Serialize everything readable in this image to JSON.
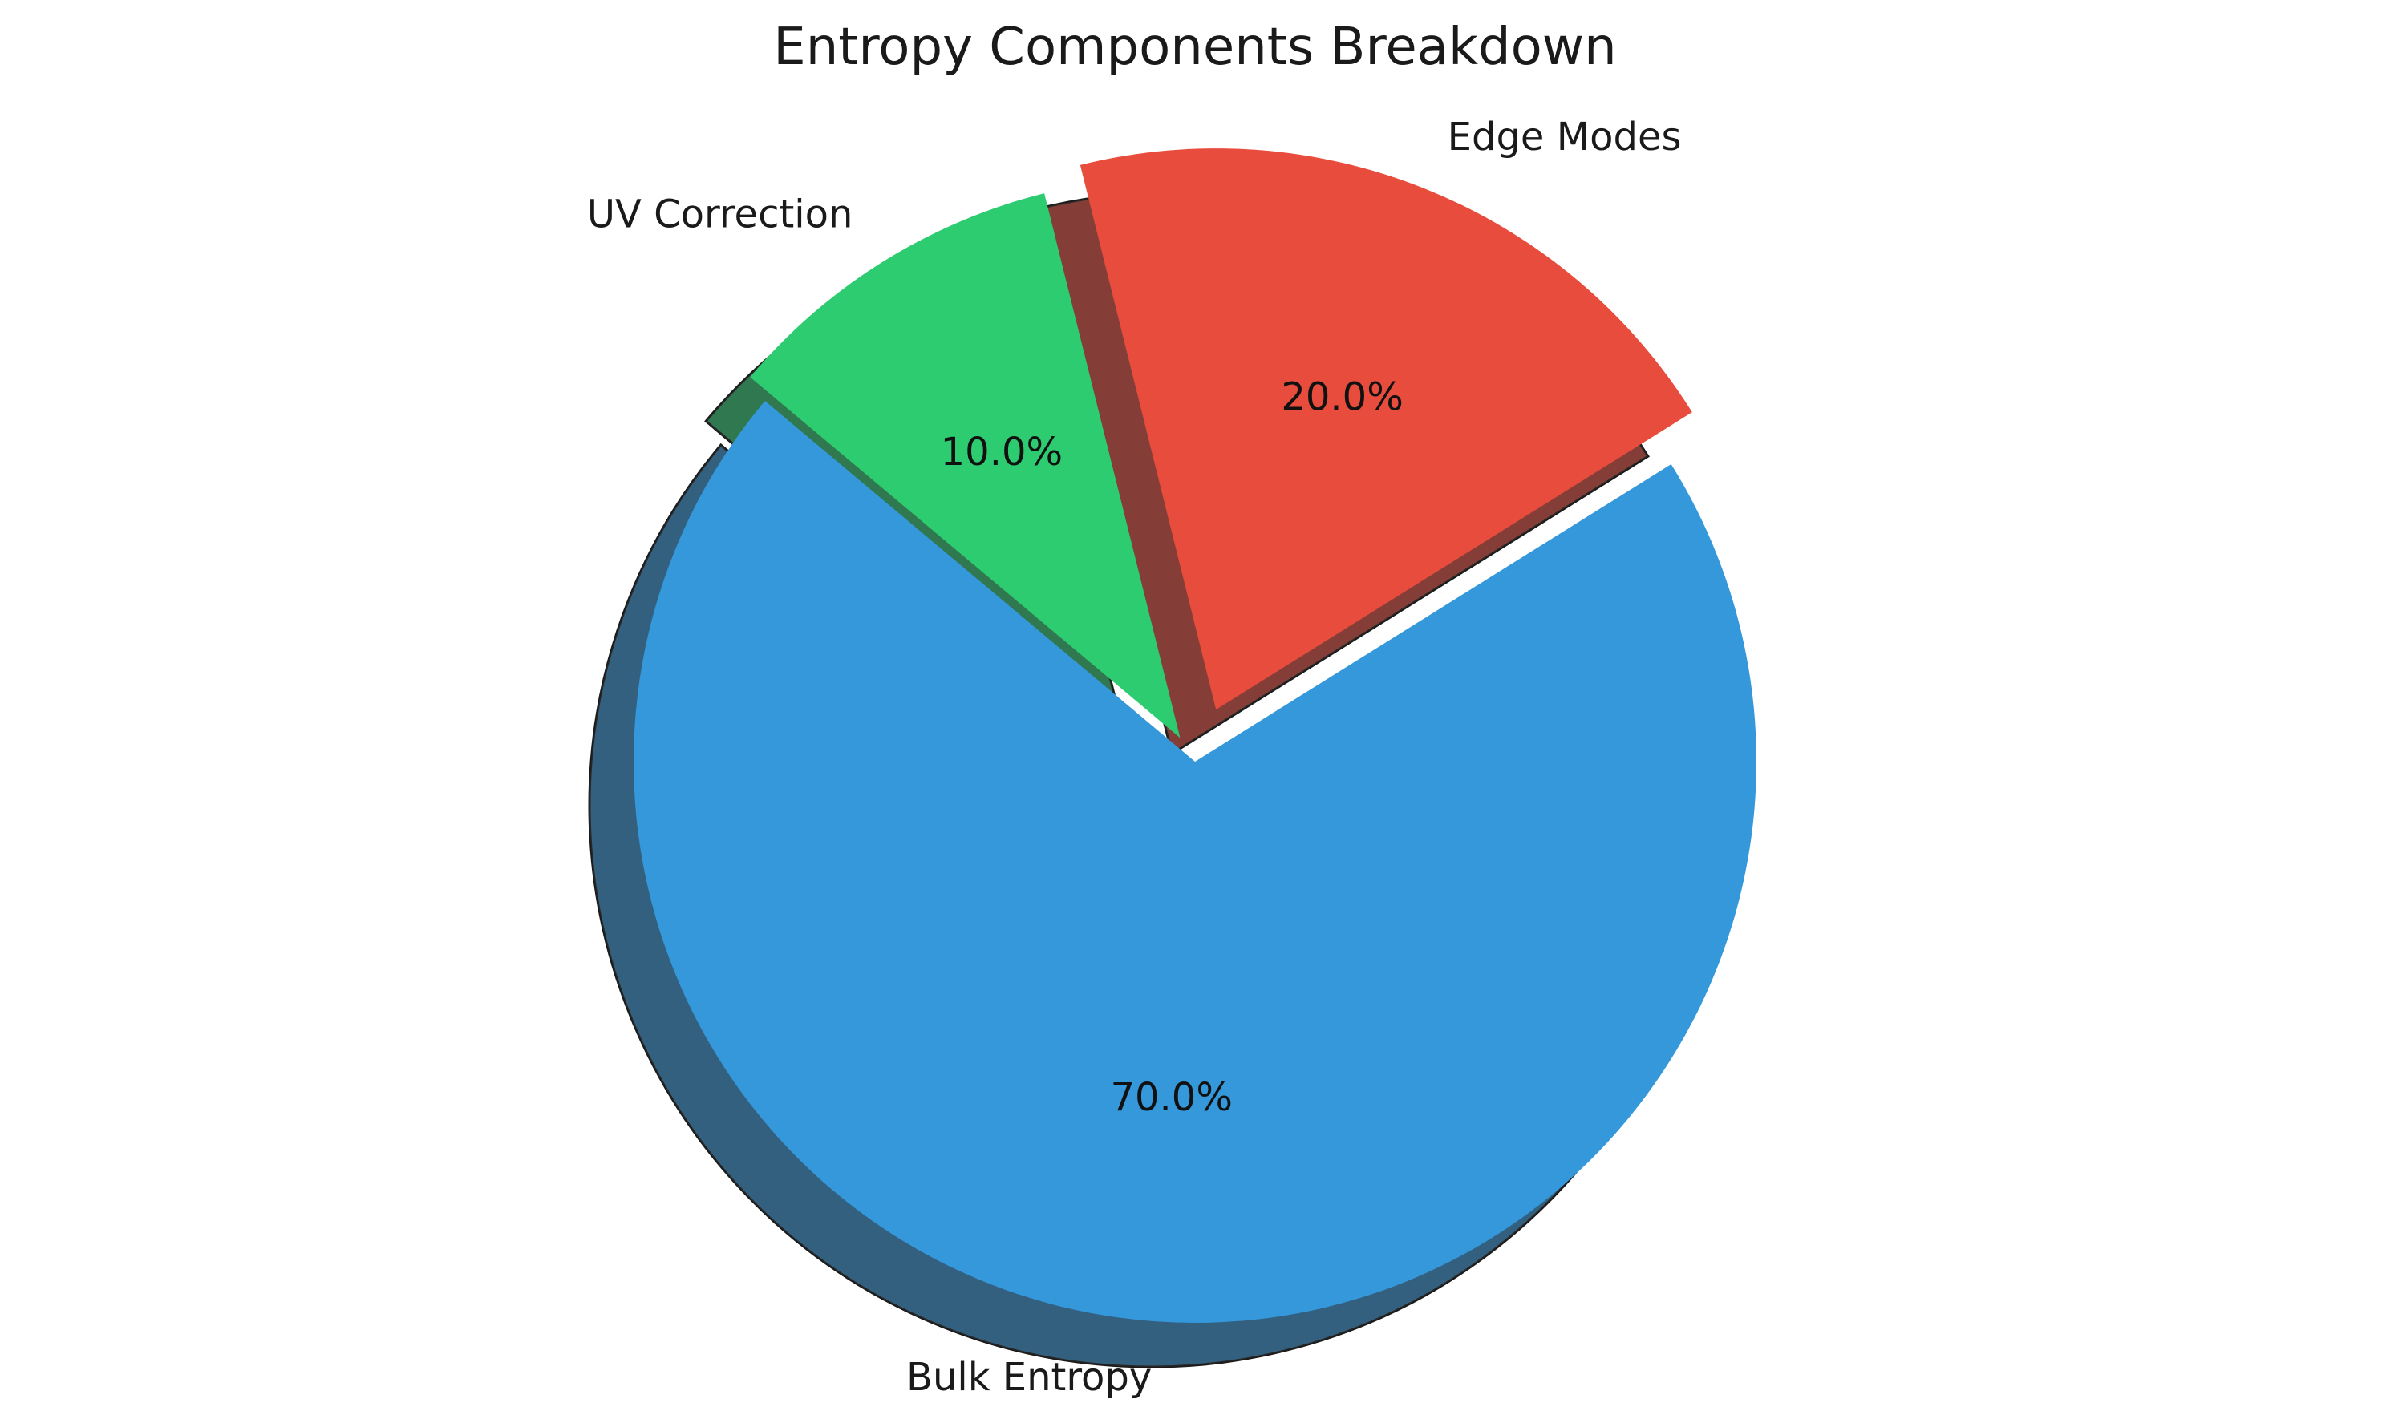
{
  "chart_data": {
    "type": "pie",
    "title": "Entropy Components Breakdown",
    "categories": [
      "Bulk Entropy",
      "Edge Modes",
      "UV Correction"
    ],
    "values": [
      70.0,
      20.0,
      10.0
    ],
    "percent_labels": [
      "70.0%",
      "20.0%",
      "10.0%"
    ],
    "colors": [
      "#3498db",
      "#e74c3c",
      "#2ecc71"
    ],
    "explode": [
      0,
      0.1,
      0.05
    ],
    "start_angle_deg": 140,
    "shadow": true,
    "legend": "none"
  }
}
